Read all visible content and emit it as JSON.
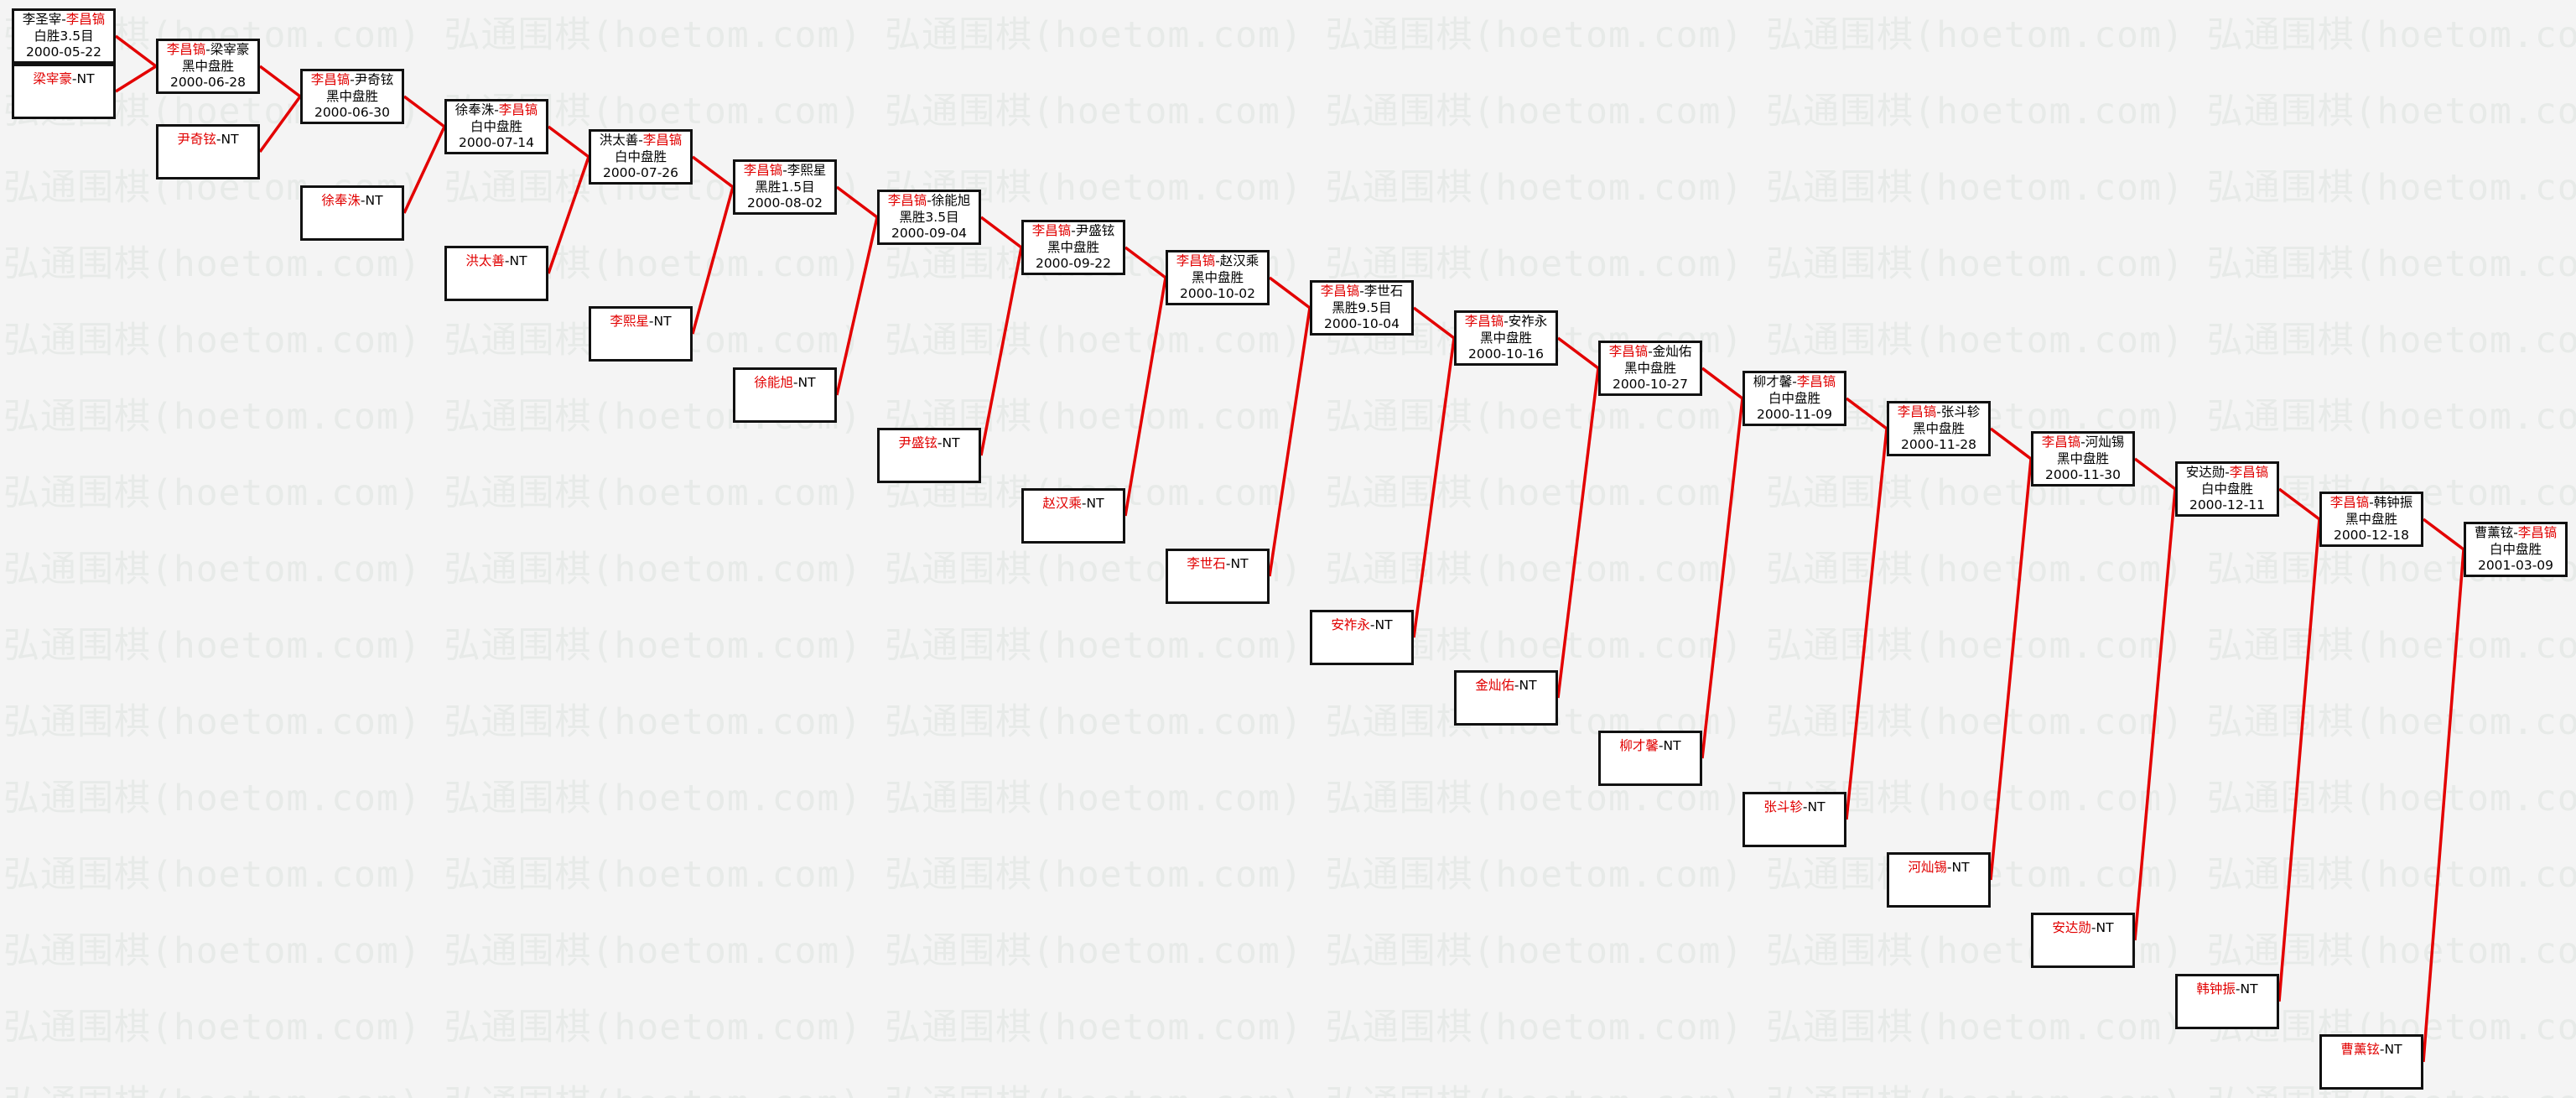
{
  "diagram": {
    "watermark_text": "弘通围棋(hoetom.com)",
    "name_separator": "-",
    "colors": {
      "page_background": "#f4f4f4",
      "watermark_gray": "#e7eae8",
      "box_fill": "#ffffff",
      "box_border": "#111111",
      "text_black": "#000000",
      "highlight_red": "#e10000",
      "connector_red": "#e30000"
    },
    "matches": [
      {
        "left": "李圣宰",
        "right": "李昌镐",
        "red_side": "right",
        "result": "白胜3.5目",
        "date": "2000-05-22"
      },
      {
        "left": "李昌镐",
        "right": "梁宰豪",
        "red_side": "left",
        "result": "黑中盘胜",
        "date": "2000-06-28"
      },
      {
        "left": "李昌镐",
        "right": "尹奇铉",
        "red_side": "left",
        "result": "黑中盘胜",
        "date": "2000-06-30"
      },
      {
        "left": "徐奉洙",
        "right": "李昌镐",
        "red_side": "right",
        "result": "白中盘胜",
        "date": "2000-07-14"
      },
      {
        "left": "洪太善",
        "right": "李昌镐",
        "red_side": "right",
        "result": "白中盘胜",
        "date": "2000-07-26"
      },
      {
        "left": "李昌镐",
        "right": "李熙星",
        "red_side": "left",
        "result": "黑胜1.5目",
        "date": "2000-08-02"
      },
      {
        "left": "李昌镐",
        "right": "徐能旭",
        "red_side": "left",
        "result": "黑胜3.5目",
        "date": "2000-09-04"
      },
      {
        "left": "李昌镐",
        "right": "尹盛铉",
        "red_side": "left",
        "result": "黑中盘胜",
        "date": "2000-09-22"
      },
      {
        "left": "李昌镐",
        "right": "赵汉乘",
        "red_side": "left",
        "result": "黑中盘胜",
        "date": "2000-10-02"
      },
      {
        "left": "李昌镐",
        "right": "李世石",
        "red_side": "left",
        "result": "黑胜9.5目",
        "date": "2000-10-04"
      },
      {
        "left": "李昌镐",
        "right": "安祚永",
        "red_side": "left",
        "result": "黑中盘胜",
        "date": "2000-10-16"
      },
      {
        "left": "李昌镐",
        "right": "金灿佑",
        "red_side": "left",
        "result": "黑中盘胜",
        "date": "2000-10-27"
      },
      {
        "left": "柳才馨",
        "right": "李昌镐",
        "red_side": "right",
        "result": "白中盘胜",
        "date": "2000-11-09"
      },
      {
        "left": "李昌镐",
        "right": "张斗轸",
        "red_side": "left",
        "result": "黑中盘胜",
        "date": "2000-11-28"
      },
      {
        "left": "李昌镐",
        "right": "河灿锡",
        "red_side": "left",
        "result": "黑中盘胜",
        "date": "2000-11-30"
      },
      {
        "left": "安达勋",
        "right": "李昌镐",
        "red_side": "right",
        "result": "白中盘胜",
        "date": "2000-12-11"
      },
      {
        "left": "李昌镐",
        "right": "韩钟振",
        "red_side": "left",
        "result": "黑中盘胜",
        "date": "2000-12-18"
      },
      {
        "left": "曹薰铉",
        "right": "李昌镐",
        "red_side": "right",
        "result": "白中盘胜",
        "date": "2001-03-09"
      }
    ],
    "eliminated": [
      {
        "name": "梁宰豪",
        "suffix": "-NT"
      },
      {
        "name": "尹奇铉",
        "suffix": "-NT"
      },
      {
        "name": "徐奉洙",
        "suffix": "-NT"
      },
      {
        "name": "洪太善",
        "suffix": "-NT"
      },
      {
        "name": "李熙星",
        "suffix": "-NT"
      },
      {
        "name": "徐能旭",
        "suffix": "-NT"
      },
      {
        "name": "尹盛铉",
        "suffix": "-NT"
      },
      {
        "name": "赵汉乘",
        "suffix": "-NT"
      },
      {
        "name": "李世石",
        "suffix": "-NT"
      },
      {
        "name": "安祚永",
        "suffix": "-NT"
      },
      {
        "name": "金灿佑",
        "suffix": "-NT"
      },
      {
        "name": "柳才馨",
        "suffix": "-NT"
      },
      {
        "name": "张斗轸",
        "suffix": "-NT"
      },
      {
        "name": "河灿锡",
        "suffix": "-NT"
      },
      {
        "name": "安达勋",
        "suffix": "-NT"
      },
      {
        "name": "韩钟振",
        "suffix": "-NT"
      },
      {
        "name": "曹薰铉",
        "suffix": "-NT"
      }
    ]
  }
}
